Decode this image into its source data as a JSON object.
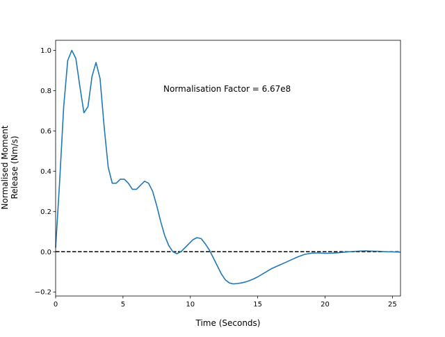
{
  "chart_data": {
    "type": "line",
    "title": "",
    "xlabel": "Time (Seconds)",
    "ylabel_line1": "Normalised Moment",
    "ylabel_line2": "Release (Nm/s)",
    "xlim": [
      0,
      25.6
    ],
    "ylim": [
      -0.22,
      1.05
    ],
    "xticks": [
      0,
      5,
      10,
      15,
      20,
      25
    ],
    "yticks": [
      -0.2,
      0.0,
      0.2,
      0.4,
      0.6,
      0.8,
      1.0
    ],
    "xtick_labels": [
      "0",
      "5",
      "10",
      "15",
      "20",
      "25"
    ],
    "ytick_labels": [
      "−0.2",
      "0.0",
      "0.2",
      "0.4",
      "0.6",
      "0.8",
      "1.0"
    ],
    "grid": false,
    "annotation": {
      "text": "Normalisation Factor = 6.67e8",
      "x": 8.0,
      "y": 0.81
    },
    "reference_line": {
      "y": 0,
      "style": "dashed",
      "color": "#000000"
    },
    "series": [
      {
        "color": "#1f77b4",
        "x": [
          0.0,
          0.3,
          0.6,
          0.9,
          1.2,
          1.5,
          1.8,
          2.1,
          2.4,
          2.7,
          3.0,
          3.3,
          3.6,
          3.9,
          4.2,
          4.5,
          4.8,
          5.1,
          5.4,
          5.7,
          6.0,
          6.3,
          6.6,
          6.9,
          7.2,
          7.5,
          7.8,
          8.1,
          8.4,
          8.7,
          9.0,
          9.3,
          9.6,
          9.9,
          10.2,
          10.5,
          10.8,
          11.1,
          11.4,
          11.7,
          12.0,
          12.3,
          12.6,
          12.9,
          13.2,
          13.5,
          13.8,
          14.1,
          14.4,
          14.7,
          15.0,
          15.5,
          16.0,
          16.5,
          17.0,
          17.5,
          18.0,
          18.5,
          19.0,
          19.5,
          20.0,
          20.5,
          21.0,
          21.5,
          22.0,
          22.5,
          23.0,
          23.5,
          24.0,
          24.5,
          25.0,
          25.6
        ],
        "y": [
          0.02,
          0.35,
          0.72,
          0.95,
          1.0,
          0.96,
          0.82,
          0.69,
          0.72,
          0.87,
          0.94,
          0.86,
          0.62,
          0.42,
          0.34,
          0.34,
          0.36,
          0.36,
          0.34,
          0.31,
          0.31,
          0.33,
          0.35,
          0.34,
          0.3,
          0.23,
          0.15,
          0.08,
          0.03,
          0.0,
          -0.01,
          0.0,
          0.02,
          0.04,
          0.06,
          0.07,
          0.065,
          0.04,
          0.01,
          -0.03,
          -0.07,
          -0.11,
          -0.14,
          -0.155,
          -0.16,
          -0.158,
          -0.155,
          -0.15,
          -0.143,
          -0.135,
          -0.125,
          -0.105,
          -0.085,
          -0.07,
          -0.055,
          -0.04,
          -0.025,
          -0.013,
          -0.007,
          -0.006,
          -0.008,
          -0.007,
          -0.005,
          -0.002,
          0.001,
          0.003,
          0.004,
          0.003,
          0.002,
          0.0,
          -0.001,
          -0.002
        ]
      }
    ]
  }
}
